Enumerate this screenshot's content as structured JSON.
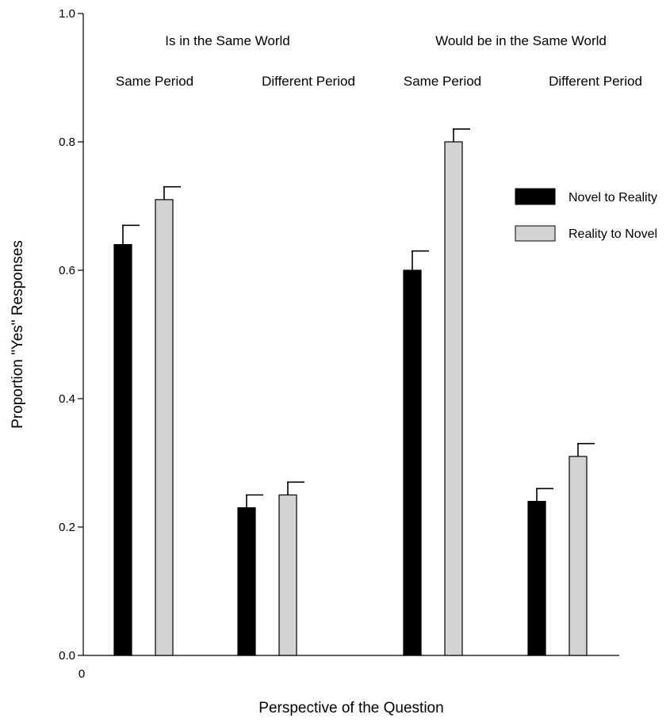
{
  "chart_data": {
    "type": "bar",
    "ylabel": "Proportion \"Yes\" Responses",
    "xlabel": "Perspective of the Question",
    "x_origin_label": "0",
    "ylim": [
      0,
      1
    ],
    "yticks": [
      "0.0",
      "0.2",
      "0.4",
      "0.6",
      "0.8",
      "1.0"
    ],
    "groups": [
      {
        "label": "Is in the Same World",
        "subgroups": [
          "Same Period",
          "Different Period"
        ]
      },
      {
        "label": "Would be in the Same World",
        "subgroups": [
          "Same Period",
          "Different Period"
        ]
      }
    ],
    "categories": [
      "Is in the Same World / Same Period",
      "Is in the Same World / Different Period",
      "Would be in the Same World / Same Period",
      "Would be in the Same World / Different Period"
    ],
    "series": [
      {
        "name": "Novel to Reality",
        "color": "#000000",
        "values": [
          0.64,
          0.23,
          0.6,
          0.24
        ],
        "errors": [
          0.03,
          0.02,
          0.03,
          0.02
        ]
      },
      {
        "name": "Reality to Novel",
        "color": "#d3d3d3",
        "values": [
          0.71,
          0.25,
          0.8,
          0.31
        ],
        "errors": [
          0.02,
          0.02,
          0.02,
          0.02
        ]
      }
    ],
    "legend_position": "right"
  }
}
